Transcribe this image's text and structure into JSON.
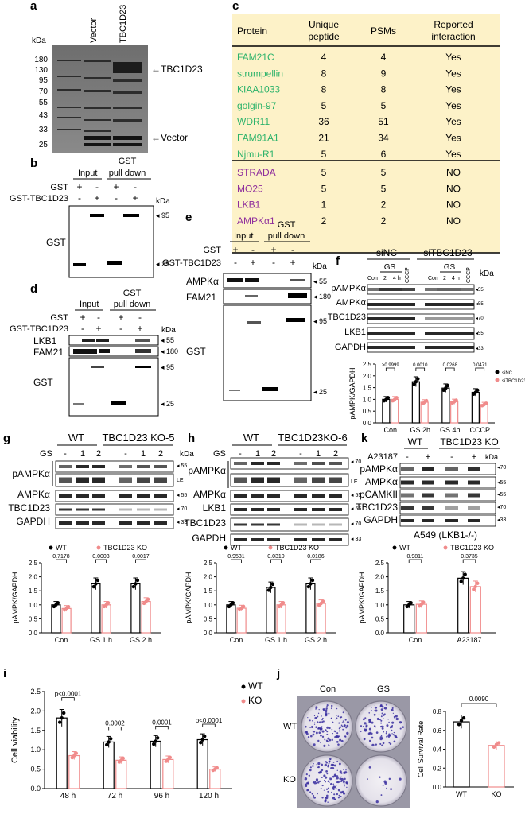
{
  "panels": {
    "a": {
      "letter": "a",
      "kda": "kDa",
      "lanes": [
        "Vector",
        "TBC1D23"
      ],
      "markers": [
        "180",
        "130",
        "95",
        "70",
        "55",
        "43",
        "33",
        "25"
      ],
      "arrows": [
        "TBC1D23",
        "Vector"
      ]
    },
    "b": {
      "letter": "b",
      "groups": [
        "Input",
        "GST",
        "pull down"
      ],
      "rows": [
        {
          "label": "GST",
          "signs": [
            "+",
            "-",
            "+",
            "-"
          ]
        },
        {
          "label": "GST-TBC1D23",
          "signs": [
            "-",
            "+",
            "-",
            "+"
          ]
        }
      ],
      "kda": "kDa",
      "blot": "GST",
      "markers": [
        "95",
        "25"
      ]
    },
    "c": {
      "letter": "c",
      "headers": [
        "Protein",
        "Unique",
        "peptide",
        "PSMs",
        "Reported",
        "interaction"
      ],
      "rows_green": [
        {
          "protein": "FAM21C",
          "unique": "4",
          "psms": "4",
          "reported": "Yes"
        },
        {
          "protein": "strumpellin",
          "unique": "8",
          "psms": "9",
          "reported": "Yes"
        },
        {
          "protein": "KIAA1033",
          "unique": "8",
          "psms": "8",
          "reported": "Yes"
        },
        {
          "protein": "golgin-97",
          "unique": "5",
          "psms": "5",
          "reported": "Yes"
        },
        {
          "protein": "WDR11",
          "unique": "36",
          "psms": "51",
          "reported": "Yes"
        },
        {
          "protein": "FAM91A1",
          "unique": "21",
          "psms": "34",
          "reported": "Yes"
        },
        {
          "protein": "Njmu-R1",
          "unique": "5",
          "psms": "6",
          "reported": "Yes"
        }
      ],
      "rows_purple": [
        {
          "protein": "STRADA",
          "unique": "5",
          "psms": "5",
          "reported": "NO"
        },
        {
          "protein": "MO25",
          "unique": "5",
          "psms": "5",
          "reported": "NO"
        },
        {
          "protein": "LKB1",
          "unique": "1",
          "psms": "2",
          "reported": "NO"
        },
        {
          "protein": "AMPKα1",
          "unique": "2",
          "psms": "2",
          "reported": "NO"
        }
      ],
      "colors": {
        "bg": "#fdf2c8",
        "green": "#2db36b",
        "purple": "#8e2d9c"
      }
    },
    "d": {
      "letter": "d",
      "groups": [
        "Input",
        "GST",
        "pull down"
      ],
      "rows": [
        {
          "label": "GST",
          "signs": [
            "+",
            "-",
            "+",
            "-"
          ]
        },
        {
          "label": "GST-TBC1D23",
          "signs": [
            "-",
            "+",
            "-",
            "+"
          ]
        }
      ],
      "kda": "kDa",
      "blots": [
        "LKB1",
        "FAM21",
        "GST"
      ],
      "markers": [
        "55",
        "180",
        "95",
        "25"
      ]
    },
    "e": {
      "letter": "e",
      "groups": [
        "Input",
        "GST",
        "pull down"
      ],
      "rows": [
        {
          "label": "GST",
          "signs": [
            "+",
            "-",
            "+",
            "-"
          ]
        },
        {
          "label": "GST-TBC1D23",
          "signs": [
            "-",
            "+",
            "-",
            "+"
          ]
        }
      ],
      "kda": "kDa",
      "blots": [
        "AMPKα",
        "FAM21",
        "GST"
      ],
      "markers": [
        "55",
        "180",
        "95",
        "25"
      ]
    },
    "f": {
      "letter": "f",
      "groups": [
        "siNC",
        "siTBC1D23"
      ],
      "sub": [
        "GS",
        "GS"
      ],
      "lanes": [
        "Con",
        "2",
        "4 h",
        "CCCP",
        "Con",
        "2",
        "4 h",
        "CCCP"
      ],
      "kda": "kDa",
      "blots": [
        "pAMPKα",
        "AMPKα",
        "TBC1D23",
        "LKB1",
        "GAPDH"
      ],
      "markers": [
        "55",
        "55",
        "70",
        "55",
        "33"
      ],
      "ylabel": "pAMPK/GAPDH",
      "xcats": [
        "Con",
        "GS 2h",
        "GS 4h",
        "CCCP"
      ],
      "pvals": [
        ">0.9999",
        "0.0010",
        "0.0268",
        "0.0471"
      ],
      "legend": [
        "siNC",
        "siTBC1D23"
      ],
      "yticks": [
        "0.0",
        "0.5",
        "1.0",
        "1.5",
        "2.0",
        "2.5"
      ]
    },
    "g": {
      "letter": "g",
      "groups": [
        "WT",
        "TBC1D23 KO-5"
      ],
      "gs": "GS",
      "lanes": [
        "-",
        "1",
        "2",
        "-",
        "1",
        "2"
      ],
      "kda": "kDa",
      "blots": [
        "pAMPKα",
        "AMPKα",
        "TBC1D23",
        "GAPDH"
      ],
      "markers": [
        "55",
        "LE",
        "55",
        "70",
        "33"
      ],
      "ylabel": "pAMPK/GAPDH",
      "xcats": [
        "Con",
        "GS 1 h",
        "GS 2 h"
      ],
      "pvals": [
        "0.7178",
        "0.0003",
        "0.0017"
      ],
      "legend": [
        "WT",
        "TBC1D23 KO"
      ],
      "yticks": [
        "0.0",
        "0.5",
        "1.0",
        "1.5",
        "2.0",
        "2.5"
      ]
    },
    "h": {
      "letter": "h",
      "groups": [
        "WT",
        "TBC1D23KO-6"
      ],
      "gs": "GS",
      "lanes": [
        "-",
        "1",
        "2",
        "-",
        "1",
        "2"
      ],
      "blots": [
        "pAMPKα",
        "AMPKα",
        "LKB1",
        "TBC1D23",
        "GAPDH"
      ],
      "markers": [
        "70",
        "LE",
        "55",
        "55",
        "70",
        "33"
      ],
      "ylabel": "pAMPK/GAPDH",
      "xcats": [
        "Con",
        "GS 1 h",
        "GS 2 h"
      ],
      "pvals": [
        "0.9531",
        "0.0310",
        "0.0186"
      ],
      "legend": [
        "WT",
        "TBC1D23 KO"
      ],
      "yticks": [
        "0.0",
        "0.5",
        "1.0",
        "1.5",
        "2.0",
        "2.5"
      ]
    },
    "k": {
      "letter": "k",
      "groups": [
        "WT",
        "TBC1D23 KO"
      ],
      "treat": "A23187",
      "lanes": [
        "-",
        "+",
        "-",
        "+"
      ],
      "kda": "kDa",
      "blots": [
        "pAMPKα",
        "AMPKα",
        "pCAMKII",
        "TBC1D23",
        "GAPDH"
      ],
      "markers": [
        "70",
        "55",
        "55",
        "70",
        "33"
      ],
      "cell": "A549 (LKB1-/-)",
      "ylabel": "pAMPK/GAPDH",
      "xcats": [
        "Con",
        "A23187"
      ],
      "pvals": [
        "0.9811",
        "0.3735"
      ],
      "legend": [
        "WT",
        "TBC1D23 KO"
      ],
      "yticks": [
        "0.0",
        "0.5",
        "1.0",
        "1.5",
        "2.0",
        "2.5"
      ]
    },
    "i": {
      "letter": "i",
      "ylabel": "Cell viability",
      "xcats": [
        "48 h",
        "72 h",
        "96 h",
        "120 h"
      ],
      "pvals": [
        "p<0.0001",
        "0.0002",
        "0.0001",
        "p<0.0001"
      ],
      "legend": [
        "WT",
        "KO"
      ],
      "yticks": [
        "0.0",
        "0.5",
        "1.0",
        "1.5",
        "2.0",
        "2.5"
      ]
    },
    "j": {
      "letter": "j",
      "cols": [
        "Con",
        "GS"
      ],
      "rows": [
        "WT",
        "KO"
      ],
      "ylabel": "Cell Survival Rate",
      "xcats": [
        "WT",
        "KO"
      ],
      "pval": "0.0090",
      "yticks": [
        "0.0",
        "0.2",
        "0.4",
        "0.6",
        "0.8"
      ]
    }
  },
  "chart_data": [
    {
      "type": "bar",
      "panel": "f",
      "categories": [
        "Con",
        "GS 2h",
        "GS 4h",
        "CCCP"
      ],
      "ylim": [
        0,
        2.5
      ],
      "series": [
        {
          "name": "siNC",
          "values": [
            1.0,
            1.75,
            1.48,
            1.3
          ]
        },
        {
          "name": "siTBC1D23",
          "values": [
            1.0,
            0.88,
            0.9,
            0.78
          ]
        }
      ]
    },
    {
      "type": "bar",
      "panel": "g",
      "categories": [
        "Con",
        "GS 1 h",
        "GS 2 h"
      ],
      "ylim": [
        0,
        2.5
      ],
      "series": [
        {
          "name": "WT",
          "values": [
            1.0,
            1.75,
            1.75
          ]
        },
        {
          "name": "TBC1D23 KO",
          "values": [
            0.87,
            1.0,
            1.12
          ]
        }
      ]
    },
    {
      "type": "bar",
      "panel": "h",
      "categories": [
        "Con",
        "GS 1 h",
        "GS 2 h"
      ],
      "ylim": [
        0,
        2.5
      ],
      "series": [
        {
          "name": "WT",
          "values": [
            1.0,
            1.62,
            1.75
          ]
        },
        {
          "name": "TBC1D23 KO",
          "values": [
            0.88,
            1.0,
            1.05
          ]
        }
      ]
    },
    {
      "type": "bar",
      "panel": "k",
      "categories": [
        "Con",
        "A23187"
      ],
      "ylim": [
        0,
        2.5
      ],
      "series": [
        {
          "name": "WT",
          "values": [
            1.0,
            1.95
          ]
        },
        {
          "name": "TBC1D23 KO",
          "values": [
            1.02,
            1.65
          ]
        }
      ]
    },
    {
      "type": "bar",
      "panel": "i",
      "categories": [
        "48 h",
        "72 h",
        "96 h",
        "120 h"
      ],
      "ylim": [
        0,
        2.5
      ],
      "series": [
        {
          "name": "WT",
          "values": [
            1.82,
            1.2,
            1.22,
            1.26
          ]
        },
        {
          "name": "KO",
          "values": [
            0.85,
            0.73,
            0.75,
            0.5
          ]
        }
      ]
    },
    {
      "type": "bar",
      "panel": "j",
      "categories": [
        "WT",
        "KO"
      ],
      "ylim": [
        0,
        0.8
      ],
      "series": [
        {
          "values": [
            0.69,
            0.44
          ]
        }
      ]
    }
  ]
}
